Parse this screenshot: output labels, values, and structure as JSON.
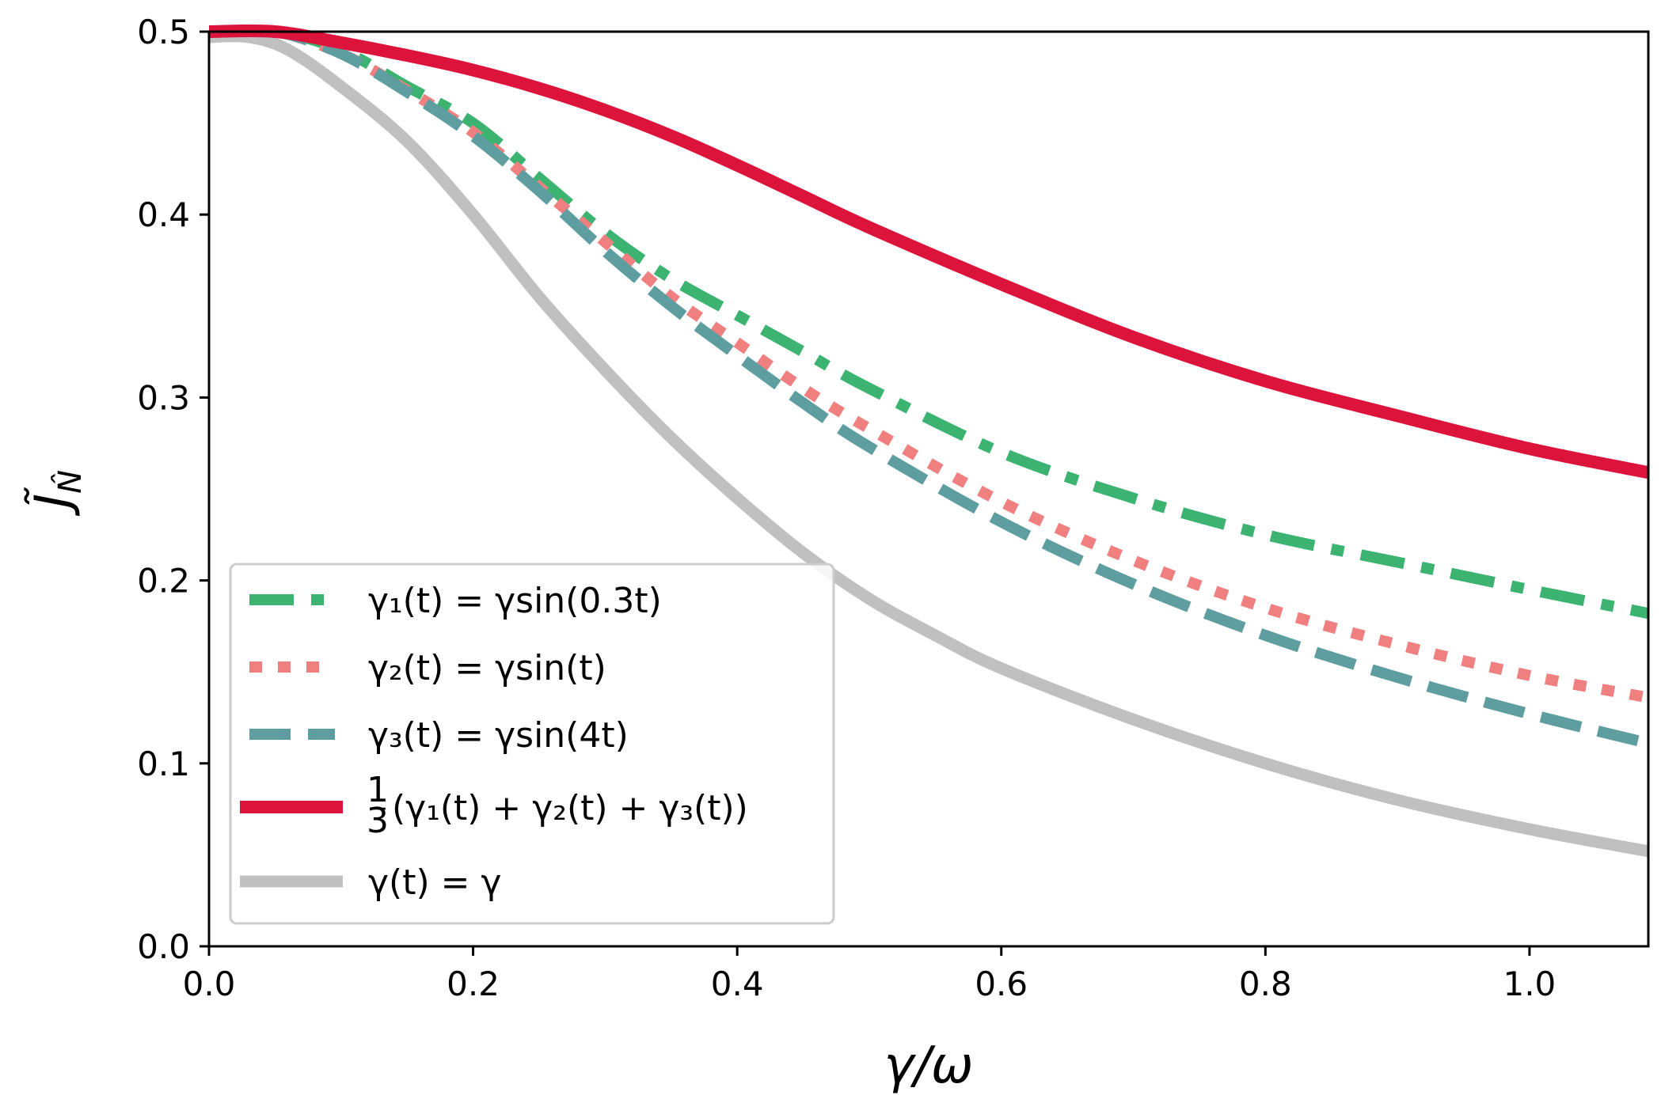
{
  "chart_data": {
    "type": "line",
    "xlabel": "γ/ω",
    "ylabel": "J̃",
    "ylabel_subscript": "N̂",
    "xlim": [
      0.0,
      1.09
    ],
    "ylim": [
      0.0,
      0.5
    ],
    "xticks": [
      0.0,
      0.2,
      0.4,
      0.6,
      0.8,
      1.0
    ],
    "xtick_labels": [
      "0.0",
      "0.2",
      "0.4",
      "0.6",
      "0.8",
      "1.0"
    ],
    "yticks": [
      0.0,
      0.1,
      0.2,
      0.3,
      0.4,
      0.5
    ],
    "ytick_labels": [
      "0.0",
      "0.1",
      "0.2",
      "0.3",
      "0.4",
      "0.5"
    ],
    "grid": false,
    "legend_position": "lower-left",
    "series": [
      {
        "name": "γ1(t) = γsin(0.3t)",
        "legend_label": "γ₁(t) = γsin(0.3t)",
        "color": "#3cb371",
        "style": "dashdot",
        "x": [
          0.0,
          0.05,
          0.1,
          0.15,
          0.2,
          0.25,
          0.3,
          0.35,
          0.4,
          0.45,
          0.5,
          0.6,
          0.7,
          0.8,
          0.9,
          1.0,
          1.09
        ],
        "y": [
          0.5,
          0.5,
          0.49,
          0.47,
          0.45,
          0.42,
          0.39,
          0.365,
          0.345,
          0.325,
          0.305,
          0.27,
          0.245,
          0.225,
          0.21,
          0.195,
          0.182
        ]
      },
      {
        "name": "γ2(t) = γsin(t)",
        "legend_label": "γ₂(t) = γsin(t)",
        "color": "#f08080",
        "style": "dotted",
        "x": [
          0.0,
          0.05,
          0.1,
          0.15,
          0.2,
          0.25,
          0.3,
          0.35,
          0.4,
          0.45,
          0.5,
          0.6,
          0.7,
          0.8,
          0.9,
          1.0,
          1.09
        ],
        "y": [
          0.5,
          0.5,
          0.488,
          0.468,
          0.445,
          0.415,
          0.385,
          0.355,
          0.33,
          0.305,
          0.283,
          0.243,
          0.211,
          0.185,
          0.165,
          0.148,
          0.136
        ]
      },
      {
        "name": "γ3(t) = γsin(4t)",
        "legend_label": "γ₃(t) = γsin(4t)",
        "color": "#5f9ea0",
        "style": "dashed",
        "x": [
          0.0,
          0.05,
          0.1,
          0.15,
          0.2,
          0.25,
          0.3,
          0.35,
          0.4,
          0.45,
          0.5,
          0.6,
          0.7,
          0.8,
          0.9,
          1.0,
          1.09
        ],
        "y": [
          0.5,
          0.5,
          0.488,
          0.467,
          0.443,
          0.413,
          0.38,
          0.35,
          0.323,
          0.297,
          0.273,
          0.232,
          0.198,
          0.17,
          0.147,
          0.127,
          0.111
        ]
      },
      {
        "name": "1/3(γ1(t) + γ2(t) + γ3(t))",
        "legend_label": "(γ₁(t) + γ₂(t) + γ₃(t))",
        "legend_fraction": [
          "1",
          "3"
        ],
        "color": "#dc143c",
        "style": "solid",
        "x": [
          0.0,
          0.05,
          0.1,
          0.15,
          0.2,
          0.25,
          0.3,
          0.35,
          0.4,
          0.45,
          0.5,
          0.6,
          0.7,
          0.8,
          0.9,
          1.0,
          1.09
        ],
        "y": [
          0.5,
          0.5,
          0.494,
          0.487,
          0.479,
          0.469,
          0.457,
          0.443,
          0.427,
          0.41,
          0.393,
          0.362,
          0.333,
          0.309,
          0.29,
          0.272,
          0.259
        ]
      },
      {
        "name": "γ(t) = γ",
        "legend_label": "γ(t) = γ",
        "color": "#c0c0c0",
        "style": "solid",
        "x": [
          0.0,
          0.03,
          0.06,
          0.1,
          0.15,
          0.2,
          0.25,
          0.3,
          0.35,
          0.4,
          0.45,
          0.5,
          0.55,
          0.6,
          0.7,
          0.8,
          0.9,
          1.0,
          1.09
        ],
        "y": [
          0.497,
          0.497,
          0.49,
          0.47,
          0.44,
          0.4,
          0.355,
          0.315,
          0.278,
          0.245,
          0.215,
          0.19,
          0.17,
          0.152,
          0.124,
          0.1,
          0.08,
          0.064,
          0.052
        ]
      }
    ]
  }
}
